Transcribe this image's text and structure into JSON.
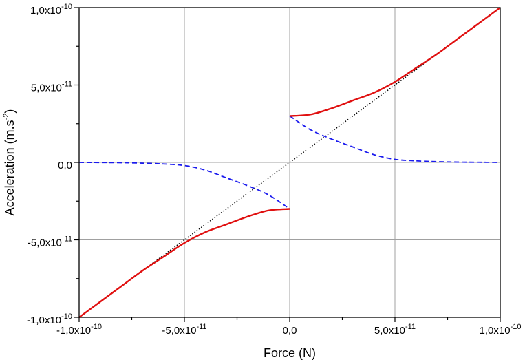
{
  "chart_data": {
    "type": "line",
    "title": "",
    "xlabel": "Force (N)",
    "ylabel_main": "Acceleration (m.s",
    "ylabel_sup": "-2",
    "ylabel_close": ")",
    "xlim": [
      -1e-10,
      1e-10
    ],
    "ylim": [
      -1e-10,
      1e-10
    ],
    "grid": true,
    "x_ticks": [
      {
        "value": -1e-10,
        "mantissa": "-1,0x10",
        "exponent": "-10"
      },
      {
        "value": -5e-11,
        "mantissa": "-5,0x10",
        "exponent": "-11"
      },
      {
        "value": 0,
        "mantissa": "0,0",
        "exponent": ""
      },
      {
        "value": 5e-11,
        "mantissa": "5,0x10",
        "exponent": "-11"
      },
      {
        "value": 1e-10,
        "mantissa": "1,0x10",
        "exponent": "-10"
      }
    ],
    "y_ticks": [
      {
        "value": 1e-10,
        "mantissa": "1,0x10",
        "exponent": "-10"
      },
      {
        "value": 5e-11,
        "mantissa": "5,0x10",
        "exponent": "-11"
      },
      {
        "value": 0,
        "mantissa": "0,0",
        "exponent": ""
      },
      {
        "value": -5e-11,
        "mantissa": "-5,0x10",
        "exponent": "-11"
      },
      {
        "value": -1e-10,
        "mantissa": "-1,0x10",
        "exponent": "-10"
      }
    ],
    "series": [
      {
        "key": "red-positive",
        "color": "#e01010",
        "style": "solid",
        "x": [
          0,
          1e-11,
          2e-11,
          3e-11,
          4e-11,
          5e-11,
          6e-11,
          7e-11,
          8e-11,
          9e-11,
          1e-10
        ],
        "y": [
          3e-11,
          3.1e-11,
          3.5e-11,
          4e-11,
          4.5e-11,
          5.2e-11,
          6.1e-11,
          7e-11,
          8e-11,
          9e-11,
          1e-10
        ]
      },
      {
        "key": "red-negative",
        "color": "#e01010",
        "style": "solid",
        "x": [
          -1e-10,
          -9e-11,
          -8e-11,
          -7e-11,
          -6e-11,
          -5e-11,
          -4e-11,
          -3e-11,
          -2e-11,
          -1e-11,
          0
        ],
        "y": [
          -1e-10,
          -9e-11,
          -8e-11,
          -7e-11,
          -6.1e-11,
          -5.2e-11,
          -4.5e-11,
          -4e-11,
          -3.5e-11,
          -3.1e-11,
          -3e-11
        ]
      },
      {
        "key": "blue-positive",
        "color": "#1a1aee",
        "style": "dashed",
        "x": [
          0,
          1e-11,
          2e-11,
          3e-11,
          4e-11,
          5e-11,
          6e-11,
          7e-11,
          8e-11,
          9e-11,
          1e-10
        ],
        "y": [
          3e-11,
          2.1e-11,
          1.5e-11,
          1e-11,
          5e-12,
          2e-12,
          1e-12,
          5e-13,
          2e-13,
          1e-13,
          0
        ]
      },
      {
        "key": "blue-negative",
        "color": "#1a1aee",
        "style": "dashed",
        "x": [
          -1e-10,
          -9e-11,
          -8e-11,
          -7e-11,
          -6e-11,
          -5e-11,
          -4e-11,
          -3e-11,
          -2e-11,
          -1e-11,
          0
        ],
        "y": [
          0,
          -1e-13,
          -2e-13,
          -5e-13,
          -1e-12,
          -2e-12,
          -5e-12,
          -1e-11,
          -1.5e-11,
          -2.1e-11,
          -3e-11
        ]
      },
      {
        "key": "black-diagonal",
        "color": "#000000",
        "style": "dotted",
        "x": [
          -1e-10,
          1e-10
        ],
        "y": [
          -1e-10,
          1e-10
        ]
      }
    ]
  }
}
